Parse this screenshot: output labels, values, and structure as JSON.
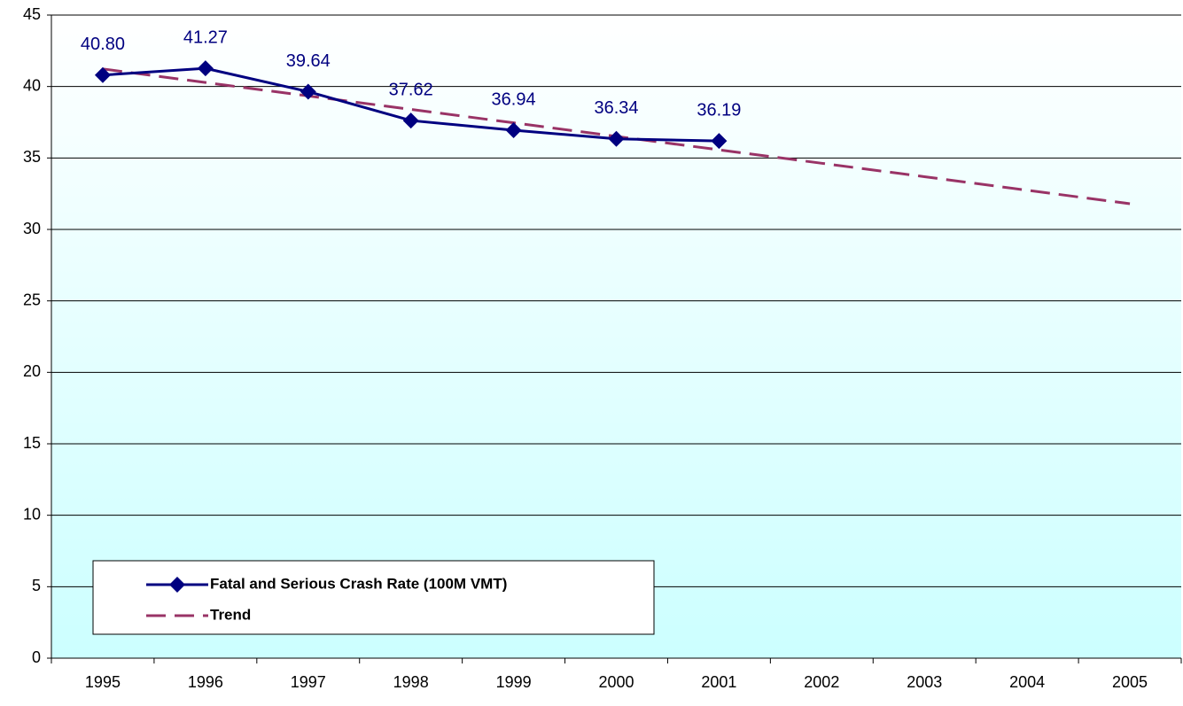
{
  "chart_data": {
    "type": "line",
    "categories": [
      "1995",
      "1996",
      "1997",
      "1998",
      "1999",
      "2000",
      "2001",
      "2002",
      "2003",
      "2004",
      "2005"
    ],
    "series": [
      {
        "name": "Fatal and Serious Crash Rate (100M VMT)",
        "color": "#000080",
        "values": [
          40.8,
          41.27,
          39.64,
          37.62,
          36.94,
          36.34,
          36.19,
          null,
          null,
          null,
          null
        ],
        "value_labels": [
          "40.80",
          "41.27",
          "39.64",
          "37.62",
          "36.94",
          "36.34",
          "36.19",
          null,
          null,
          null,
          null
        ]
      },
      {
        "name": "Trend",
        "color": "#993366",
        "dashed": true,
        "values": [
          41.23,
          40.28,
          39.34,
          38.4,
          37.46,
          36.51,
          35.57,
          34.63,
          33.69,
          32.74,
          31.8
        ]
      }
    ],
    "ylim": [
      0,
      45
    ],
    "yticks": [
      0,
      5,
      10,
      15,
      20,
      25,
      30,
      35,
      40,
      45
    ],
    "grid": true,
    "legend": "lower left"
  }
}
